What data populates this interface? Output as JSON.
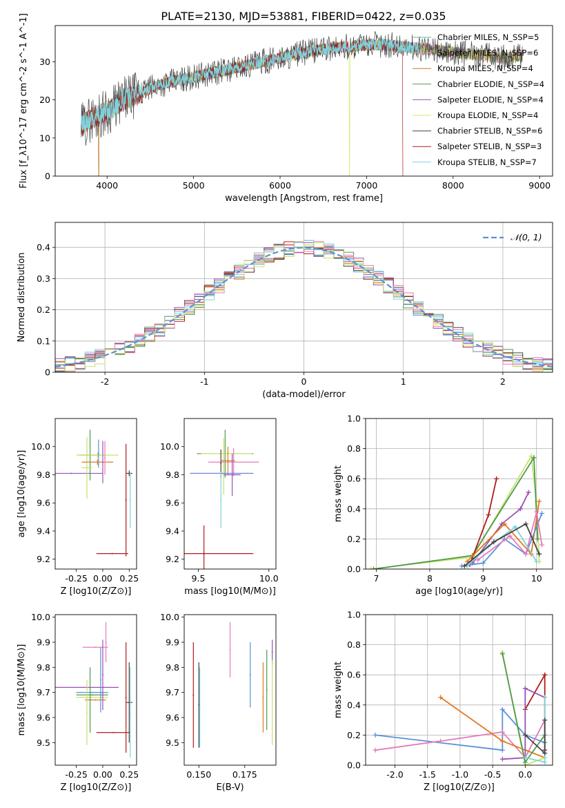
{
  "figure": {
    "title": "PLATE=2130, MJD=53881, FIBERID=0422, z=0.035"
  },
  "chart_data": [
    {
      "id": "spectrum",
      "type": "line",
      "xlabel": "wavelength [Angstrom, rest frame]",
      "ylabel": "Flux [f_λ10^-17 erg cm^-2 s^-1 A^-1]",
      "xlim": [
        3400,
        9150
      ],
      "ylim": [
        0,
        39.5
      ],
      "xticks": [
        4000,
        5000,
        6000,
        7000,
        8000,
        9000
      ],
      "yticks": [
        0,
        10,
        20,
        30
      ],
      "grid": false,
      "legend_position": "right",
      "series": [
        {
          "name": "Chabrier MILES, N_SSP=5",
          "color": "#5bb4a2"
        },
        {
          "name": "Salpeter MILES, N_SSP=6",
          "color": "#f3a0b6"
        },
        {
          "name": "Kroupa MILES, N_SSP=4",
          "color": "#c27c2c"
        },
        {
          "name": "Chabrier ELODIE, N_SSP=4",
          "color": "#4d9a4d"
        },
        {
          "name": "Salpeter ELODIE, N_SSP=4",
          "color": "#9b4fb6"
        },
        {
          "name": "Kroupa ELODIE, N_SSP=4",
          "color": "#d8e56a"
        },
        {
          "name": "Chabrier STELIB, N_SSP=6",
          "color": "#444444"
        },
        {
          "name": "Salpeter STELIB, N_SSP=3",
          "color": "#b01a1a"
        },
        {
          "name": "Kroupa STELIB, N_SSP=7",
          "color": "#7fd2de"
        }
      ],
      "continuum": [
        [
          3700,
          13
        ],
        [
          3800,
          15
        ],
        [
          3900,
          16
        ],
        [
          4000,
          17
        ],
        [
          4200,
          20
        ],
        [
          4400,
          22
        ],
        [
          4600,
          24
        ],
        [
          4800,
          25
        ],
        [
          5000,
          26
        ],
        [
          5200,
          27
        ],
        [
          5400,
          28
        ],
        [
          5600,
          29
        ],
        [
          5800,
          30
        ],
        [
          6000,
          31
        ],
        [
          6200,
          32
        ],
        [
          6400,
          33
        ],
        [
          6600,
          33.5
        ],
        [
          6800,
          34
        ],
        [
          7000,
          34.5
        ],
        [
          7200,
          34.5
        ],
        [
          7400,
          34
        ],
        [
          7600,
          33.5
        ],
        [
          7800,
          33
        ],
        [
          8000,
          32.5
        ],
        [
          8200,
          32
        ],
        [
          8400,
          31.5
        ],
        [
          8600,
          31
        ],
        [
          8800,
          31.5
        ]
      ],
      "dropouts": [
        {
          "x": 3900,
          "label": "Kroupa MILES"
        },
        {
          "x": 6800,
          "label": "Kroupa ELODIE"
        },
        {
          "x": 7420,
          "label": "Salpeter STELIB"
        }
      ]
    },
    {
      "id": "residuals",
      "type": "line",
      "xlabel": "(data-model)/error",
      "ylabel": "Normed distribution",
      "xlim": [
        -2.5,
        2.5
      ],
      "ylim": [
        0,
        0.48
      ],
      "xticks": [
        -2,
        -1,
        0,
        1,
        2
      ],
      "yticks": [
        0.0,
        0.1,
        0.2,
        0.3,
        0.4
      ],
      "grid": true,
      "legend_position": "top-right",
      "gaussian": {
        "name": "𝒩(0, 1)",
        "color": "#5b8fd9"
      },
      "histogram_colors": [
        "#5b8fd9",
        "#e3771c",
        "#4d9a4d",
        "#b01a1a",
        "#9b4fb6",
        "#444444",
        "#e57ab8",
        "#7fd2de",
        "#c8e26a"
      ]
    },
    {
      "id": "age-vs-z",
      "type": "scatter",
      "xlabel": "Z [log10(Z/Z⊙)]",
      "ylabel": "age  [log10(age/yr)]",
      "xlim": [
        -0.45,
        0.32
      ],
      "ylim": [
        9.13,
        10.2
      ],
      "xticks": [
        -0.25,
        0.0,
        0.25
      ],
      "yticks": [
        9.2,
        9.4,
        9.6,
        9.8,
        10.0
      ],
      "grid": false,
      "points": [
        {
          "x": -0.3,
          "y": 9.81,
          "xerr": 0.3,
          "yerr": 0.0,
          "color": "#9b4fb6"
        },
        {
          "x": -0.12,
          "y": 9.94,
          "xerr": 0.1,
          "yerr": 0.18,
          "color": "#4d9a4d"
        },
        {
          "x": -0.05,
          "y": 9.94,
          "xerr": 0.2,
          "yerr": 0.02,
          "color": "#c8e26a"
        },
        {
          "x": -0.15,
          "y": 9.85,
          "xerr": 0.05,
          "yerr": 0.22,
          "color": "#c8e26a"
        },
        {
          "x": -0.05,
          "y": 9.89,
          "xerr": 0.15,
          "yerr": 0.02,
          "color": "#e3771c"
        },
        {
          "x": 0.0,
          "y": 9.89,
          "xerr": 0.0,
          "yerr": 0.15,
          "color": "#9b4fb6"
        },
        {
          "x": 0.02,
          "y": 9.92,
          "xerr": 0.0,
          "yerr": 0.12,
          "color": "#e57ab8"
        },
        {
          "x": -0.04,
          "y": 9.95,
          "xerr": 0.0,
          "yerr": 0.1,
          "color": "#5b8fd9"
        },
        {
          "x": 0.22,
          "y": 9.62,
          "xerr": 0.0,
          "yerr": 0.4,
          "color": "#b01a1a"
        },
        {
          "x": 0.09,
          "y": 9.24,
          "xerr": 0.15,
          "yerr": 0.0,
          "color": "#b01a1a"
        },
        {
          "x": 0.25,
          "y": 9.81,
          "xerr": 0.03,
          "yerr": 0.02,
          "color": "#444444"
        },
        {
          "x": 0.26,
          "y": 9.62,
          "xerr": 0.0,
          "yerr": 0.2,
          "color": "#7fd2de"
        }
      ]
    },
    {
      "id": "age-vs-mass",
      "type": "scatter",
      "xlabel": "mass [log10(M/M⊙)]",
      "ylabel": "",
      "xlim": [
        9.4,
        10.05
      ],
      "ylim": [
        9.13,
        10.2
      ],
      "xticks": [
        9.5,
        10.0
      ],
      "yticks": [
        9.2,
        9.4,
        9.6,
        9.8,
        10.0
      ],
      "grid": false,
      "points": [
        {
          "x": 9.67,
          "y": 9.81,
          "xerr": 0.22,
          "yerr": 0.0,
          "color": "#9b4fb6"
        },
        {
          "x": 9.69,
          "y": 9.95,
          "xerr": 0.2,
          "yerr": 0.17,
          "color": "#4d9a4d"
        },
        {
          "x": 9.7,
          "y": 9.95,
          "xerr": 0.18,
          "yerr": 0.0,
          "color": "#c8e26a"
        },
        {
          "x": 9.68,
          "y": 9.86,
          "xerr": 0.0,
          "yerr": 0.2,
          "color": "#c8e26a"
        },
        {
          "x": 9.75,
          "y": 9.89,
          "xerr": 0.18,
          "yerr": 0.1,
          "color": "#e57ab8"
        },
        {
          "x": 9.71,
          "y": 9.9,
          "xerr": 0.05,
          "yerr": 0.1,
          "color": "#e3771c"
        },
        {
          "x": 9.66,
          "y": 9.88,
          "xerr": 0.0,
          "yerr": 0.1,
          "color": "#444444"
        },
        {
          "x": 9.66,
          "y": 9.81,
          "xerr": 0.22,
          "yerr": 0.0,
          "color": "#5b8fd9"
        },
        {
          "x": 9.66,
          "y": 9.62,
          "xerr": 0.0,
          "yerr": 0.2,
          "color": "#7fd2de"
        },
        {
          "x": 9.54,
          "y": 9.24,
          "xerr": 0.35,
          "yerr": 0.0,
          "color": "#b01a1a"
        },
        {
          "x": 9.54,
          "y": 9.24,
          "xerr": 0.0,
          "yerr": 0.2,
          "color": "#b01a1a"
        },
        {
          "x": 9.74,
          "y": 9.8,
          "xerr": 0.06,
          "yerr": 0.15,
          "color": "#9b4fb6"
        }
      ]
    },
    {
      "id": "mass-weight-vs-age",
      "type": "line",
      "xlabel": "age  [log10(age/yr)]",
      "ylabel": "mass weight",
      "xlim": [
        6.8,
        10.3
      ],
      "ylim": [
        0,
        1.0
      ],
      "xticks": [
        7,
        8,
        9,
        10
      ],
      "yticks": [
        0.0,
        0.2,
        0.4,
        0.6,
        0.8,
        1.0
      ],
      "grid": true,
      "series": [
        {
          "color": "#c8e26a",
          "points": [
            [
              6.9,
              0.0
            ],
            [
              8.8,
              0.08
            ],
            [
              9.9,
              0.75
            ],
            [
              10.0,
              0.45
            ],
            [
              10.05,
              0.05
            ]
          ]
        },
        {
          "color": "#4d9a4d",
          "points": [
            [
              6.95,
              0.0
            ],
            [
              8.8,
              0.09
            ],
            [
              9.95,
              0.74
            ],
            [
              10.02,
              0.2
            ]
          ]
        },
        {
          "color": "#b01a1a",
          "points": [
            [
              8.75,
              0.03
            ],
            [
              9.1,
              0.36
            ],
            [
              9.25,
              0.6
            ]
          ]
        },
        {
          "color": "#9b4fb6",
          "points": [
            [
              8.8,
              0.04
            ],
            [
              9.35,
              0.3
            ],
            [
              9.7,
              0.4
            ],
            [
              9.85,
              0.51
            ]
          ]
        },
        {
          "color": "#e3771c",
          "points": [
            [
              8.7,
              0.05
            ],
            [
              9.4,
              0.3
            ],
            [
              9.9,
              0.1
            ],
            [
              10.05,
              0.45
            ]
          ]
        },
        {
          "color": "#5b8fd9",
          "points": [
            [
              8.6,
              0.02
            ],
            [
              9.0,
              0.04
            ],
            [
              9.4,
              0.2
            ],
            [
              9.8,
              0.1
            ],
            [
              10.1,
              0.37
            ]
          ]
        },
        {
          "color": "#e57ab8",
          "points": [
            [
              8.9,
              0.06
            ],
            [
              9.5,
              0.22
            ],
            [
              9.8,
              0.1
            ],
            [
              10.0,
              0.38
            ],
            [
              10.1,
              0.16
            ]
          ]
        },
        {
          "color": "#7fd2de",
          "points": [
            [
              8.7,
              0.02
            ],
            [
              9.1,
              0.15
            ],
            [
              9.6,
              0.28
            ],
            [
              10.0,
              0.05
            ]
          ]
        },
        {
          "color": "#444444",
          "points": [
            [
              8.65,
              0.02
            ],
            [
              9.2,
              0.18
            ],
            [
              9.8,
              0.3
            ],
            [
              10.05,
              0.1
            ]
          ]
        }
      ]
    },
    {
      "id": "mass-vs-z",
      "type": "scatter",
      "xlabel": "Z [log10(Z/Z⊙)]",
      "ylabel": "mass [log10(M/M⊙)]",
      "xlim": [
        -0.45,
        0.32
      ],
      "ylim": [
        9.41,
        10.01
      ],
      "xticks": [
        -0.25,
        0.0,
        0.25
      ],
      "yticks": [
        9.5,
        9.6,
        9.7,
        9.8,
        9.9,
        10.0
      ],
      "grid": false,
      "points": [
        {
          "x": -0.15,
          "y": 9.72,
          "xerr": 0.3,
          "yerr": 0.0,
          "color": "#9b4fb6"
        },
        {
          "x": -0.1,
          "y": 9.7,
          "xerr": 0.15,
          "yerr": 0.0,
          "color": "#5b8fd9"
        },
        {
          "x": -0.1,
          "y": 9.69,
          "xerr": 0.15,
          "yerr": 0.0,
          "color": "#4d9a4d"
        },
        {
          "x": -0.1,
          "y": 9.68,
          "xerr": 0.15,
          "yerr": 0.0,
          "color": "#c8e26a"
        },
        {
          "x": -0.07,
          "y": 9.67,
          "xerr": 0.1,
          "yerr": 0.0,
          "color": "#e3771c"
        },
        {
          "x": -0.07,
          "y": 9.88,
          "xerr": 0.12,
          "yerr": 0.0,
          "color": "#e57ab8"
        },
        {
          "x": -0.12,
          "y": 9.67,
          "xerr": 0.0,
          "yerr": 0.13,
          "color": "#4d9a4d"
        },
        {
          "x": -0.15,
          "y": 9.62,
          "xerr": 0.0,
          "yerr": 0.13,
          "color": "#c8e26a"
        },
        {
          "x": 0.0,
          "y": 9.77,
          "xerr": 0.0,
          "yerr": 0.14,
          "color": "#9b4fb6"
        },
        {
          "x": -0.02,
          "y": 9.75,
          "xerr": 0.0,
          "yerr": 0.13,
          "color": "#5b8fd9"
        },
        {
          "x": 0.03,
          "y": 9.9,
          "xerr": 0.0,
          "yerr": 0.08,
          "color": "#e57ab8"
        },
        {
          "x": 0.1,
          "y": 9.54,
          "xerr": 0.16,
          "yerr": 0.0,
          "color": "#b01a1a"
        },
        {
          "x": 0.22,
          "y": 9.68,
          "xerr": 0.0,
          "yerr": 0.22,
          "color": "#b01a1a"
        },
        {
          "x": 0.25,
          "y": 9.66,
          "xerr": 0.03,
          "yerr": 0.16,
          "color": "#444444"
        },
        {
          "x": 0.26,
          "y": 9.62,
          "xerr": 0.0,
          "yerr": 0.18,
          "color": "#7fd2de"
        }
      ]
    },
    {
      "id": "mass-vs-ebv",
      "type": "scatter",
      "xlabel": "E(B-V)",
      "ylabel": "",
      "xlim": [
        0.142,
        0.192
      ],
      "ylim": [
        9.41,
        10.01
      ],
      "xticks": [
        0.15,
        0.175
      ],
      "yticks": [
        9.5,
        9.6,
        9.7,
        9.8,
        9.9,
        10.0
      ],
      "grid": false,
      "points": [
        {
          "x": 0.147,
          "y": 9.69,
          "yerr": 0.21,
          "color": "#b01a1a"
        },
        {
          "x": 0.15,
          "y": 9.65,
          "yerr": 0.17,
          "color": "#444444"
        },
        {
          "x": 0.1505,
          "y": 9.64,
          "yerr": 0.16,
          "color": "#7fd2de"
        },
        {
          "x": 0.167,
          "y": 9.87,
          "yerr": 0.11,
          "color": "#e57ab8"
        },
        {
          "x": 0.178,
          "y": 9.77,
          "yerr": 0.13,
          "color": "#5b8fd9"
        },
        {
          "x": 0.185,
          "y": 9.68,
          "yerr": 0.14,
          "color": "#e3771c"
        },
        {
          "x": 0.187,
          "y": 9.71,
          "yerr": 0.16,
          "color": "#4d9a4d"
        },
        {
          "x": 0.19,
          "y": 9.86,
          "yerr": 0.05,
          "color": "#9b4fb6"
        },
        {
          "x": 0.19,
          "y": 9.66,
          "yerr": 0.17,
          "color": "#c8e26a"
        }
      ]
    },
    {
      "id": "mass-weight-vs-z",
      "type": "line",
      "xlabel": "Z [log10(Z/Z⊙)]",
      "ylabel": "mass weight",
      "xlim": [
        -2.45,
        0.42
      ],
      "ylim": [
        0,
        1.0
      ],
      "xticks": [
        -2.0,
        -1.5,
        -1.0,
        -0.5,
        0.0
      ],
      "yticks": [
        0.0,
        0.2,
        0.4,
        0.6,
        0.8,
        1.0
      ],
      "grid": true,
      "series": [
        {
          "color": "#5b8fd9",
          "points": [
            [
              -2.3,
              0.2
            ],
            [
              -0.35,
              0.1
            ],
            [
              -0.35,
              0.37
            ],
            [
              0.0,
              0.2
            ],
            [
              0.3,
              0.15
            ]
          ]
        },
        {
          "color": "#e57ab8",
          "points": [
            [
              -2.3,
              0.1
            ],
            [
              -1.3,
              0.16
            ],
            [
              -0.35,
              0.22
            ],
            [
              0.0,
              0.05
            ],
            [
              0.3,
              0.3
            ]
          ]
        },
        {
          "color": "#e3771c",
          "points": [
            [
              -1.3,
              0.45
            ],
            [
              -0.35,
              0.16
            ],
            [
              0.3,
              0.05
            ]
          ]
        },
        {
          "color": "#c8e26a",
          "points": [
            [
              -0.35,
              0.75
            ],
            [
              0.0,
              0.0
            ],
            [
              0.3,
              0.05
            ]
          ]
        },
        {
          "color": "#4d9a4d",
          "points": [
            [
              -0.35,
              0.74
            ],
            [
              0.0,
              0.02
            ],
            [
              0.3,
              0.2
            ]
          ]
        },
        {
          "color": "#b01a1a",
          "points": [
            [
              0.0,
              0.37
            ],
            [
              0.3,
              0.6
            ],
            [
              0.3,
              0.1
            ]
          ]
        },
        {
          "color": "#9b4fb6",
          "points": [
            [
              -0.35,
              0.04
            ],
            [
              0.0,
              0.05
            ],
            [
              0.0,
              0.51
            ],
            [
              0.3,
              0.45
            ]
          ]
        },
        {
          "color": "#7fd2de",
          "points": [
            [
              0.0,
              0.05
            ],
            [
              0.3,
              0.02
            ],
            [
              0.3,
              0.45
            ]
          ]
        },
        {
          "color": "#444444",
          "points": [
            [
              0.0,
              0.2
            ],
            [
              0.3,
              0.08
            ],
            [
              0.3,
              0.3
            ]
          ]
        }
      ]
    }
  ]
}
